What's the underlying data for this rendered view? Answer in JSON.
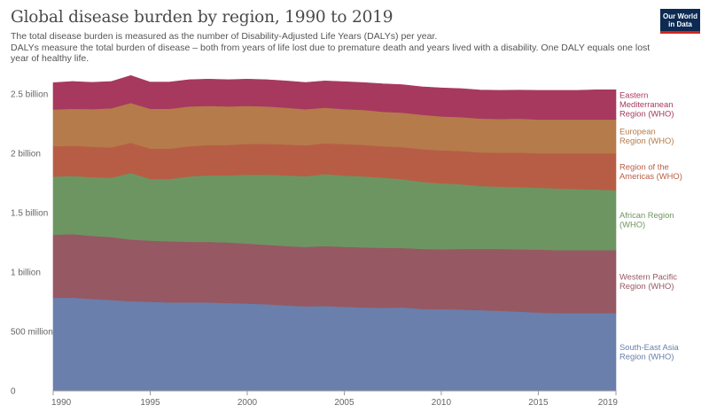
{
  "header": {
    "title": "Global disease burden by region, 1990 to 2019",
    "subtitle_line1": "The total disease burden is measured as the number of Disability-Adjusted Life Years (DALYs) per year.",
    "subtitle_line2": "DALYs measure the total burden of disease – both from years of life lost due to premature death and years lived with a disability. One DALY equals one lost year of healthy life.",
    "logo_line1": "Our World",
    "logo_line2": "in Data"
  },
  "chart_data": {
    "type": "area",
    "stacked": true,
    "title": "Global disease burden by region, 1990 to 2019",
    "x": [
      1990,
      1991,
      1992,
      1993,
      1994,
      1995,
      1996,
      1997,
      1998,
      1999,
      2000,
      2001,
      2002,
      2003,
      2004,
      2005,
      2006,
      2007,
      2008,
      2009,
      2010,
      2011,
      2012,
      2013,
      2014,
      2015,
      2016,
      2017,
      2018,
      2019
    ],
    "xlim": [
      1990,
      2019
    ],
    "xticks": [
      1990,
      1995,
      2000,
      2005,
      2010,
      2015,
      2019
    ],
    "ylim": [
      0,
      2500000000
    ],
    "yticks": [
      {
        "value": 0,
        "label": "0"
      },
      {
        "value": 500000000,
        "label": "500 million"
      },
      {
        "value": 1000000000,
        "label": "1 billion"
      },
      {
        "value": 1500000000,
        "label": "1.5 billion"
      },
      {
        "value": 2000000000,
        "label": "2 billion"
      },
      {
        "value": 2500000000,
        "label": "2.5 billion"
      }
    ],
    "grid": "horizontal",
    "legend_position": "right",
    "series": [
      {
        "name": "South-East Asia Region (WHO)",
        "label_lines": [
          "South-East Asia",
          "Region (WHO)"
        ],
        "color": "#6a7fab",
        "values": [
          785,
          785,
          775,
          765,
          755,
          750,
          745,
          745,
          745,
          740,
          735,
          730,
          720,
          712,
          715,
          708,
          703,
          700,
          703,
          690,
          688,
          685,
          680,
          675,
          667,
          660,
          655,
          655,
          655,
          655
        ]
      },
      {
        "name": "Western Pacific Region (WHO)",
        "label_lines": [
          "Western Pacific",
          "Region (WHO)"
        ],
        "color": "#965863",
        "values": [
          530,
          535,
          530,
          530,
          520,
          515,
          515,
          510,
          510,
          510,
          505,
          500,
          500,
          500,
          505,
          505,
          505,
          505,
          500,
          505,
          505,
          510,
          515,
          520,
          525,
          530,
          530,
          530,
          530,
          530
        ]
      },
      {
        "name": "African Region (WHO)",
        "label_lines": [
          "African Region",
          "(WHO)"
        ],
        "color": "#6d9562",
        "values": [
          490,
          490,
          495,
          500,
          560,
          520,
          525,
          550,
          560,
          565,
          580,
          590,
          595,
          595,
          605,
          600,
          598,
          590,
          580,
          565,
          555,
          545,
          530,
          525,
          525,
          520,
          520,
          515,
          510,
          505
        ]
      },
      {
        "name": "Region of the Americas (WHO)",
        "label_lines": [
          "Region of the",
          "Americas (WHO)"
        ],
        "color": "#b85d45",
        "values": [
          255,
          255,
          255,
          255,
          255,
          255,
          255,
          255,
          255,
          255,
          260,
          260,
          260,
          260,
          260,
          265,
          265,
          265,
          270,
          275,
          278,
          280,
          283,
          285,
          290,
          290,
          295,
          300,
          305,
          310
        ]
      },
      {
        "name": "European Region (WHO)",
        "label_lines": [
          "European",
          "Region (WHO)"
        ],
        "color": "#b57b4b",
        "values": [
          310,
          310,
          318,
          330,
          335,
          335,
          335,
          335,
          330,
          325,
          320,
          315,
          310,
          305,
          300,
          295,
          295,
          290,
          290,
          290,
          285,
          285,
          285,
          285,
          285,
          285,
          285,
          285,
          285,
          285
        ]
      },
      {
        "name": "Eastern Mediterranean Region (WHO)",
        "label_lines": [
          "Eastern",
          "Mediterranean",
          "Region (WHO)"
        ],
        "color": "#a7395f",
        "values": [
          225,
          230,
          225,
          225,
          230,
          225,
          225,
          225,
          225,
          225,
          225,
          225,
          225,
          225,
          225,
          230,
          230,
          235,
          235,
          235,
          240,
          240,
          240,
          240,
          240,
          245,
          245,
          245,
          250,
          250
        ]
      }
    ],
    "value_unit_multiplier": 1000000
  }
}
